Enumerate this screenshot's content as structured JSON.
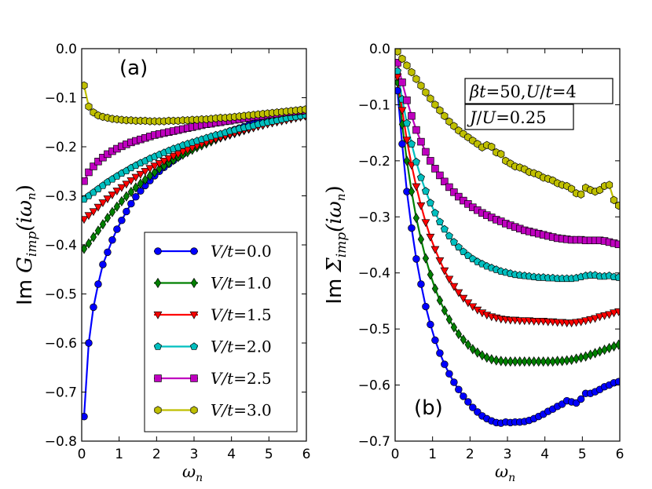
{
  "chart_data": [
    {
      "type": "line",
      "panel_label": "(a)",
      "xlabel": "ω",
      "xlabel_sub": "n",
      "ylabel_prefix": "Im",
      "ylabel_symbol": "G",
      "ylabel_sub": "imp",
      "ylabel_arg": "(iω",
      "ylabel_arg_sub": "n",
      "ylabel_close": ")",
      "xlim": [
        0,
        6
      ],
      "ylim": [
        -0.8,
        0.0
      ],
      "xticks": [
        0,
        1,
        2,
        3,
        4,
        5,
        6
      ],
      "yticks": [
        -0.8,
        -0.7,
        -0.6,
        -0.5,
        -0.4,
        -0.3,
        -0.2,
        -0.1,
        0.0
      ],
      "xtick_labels": [
        "0",
        "1",
        "2",
        "3",
        "4",
        "5",
        "6"
      ],
      "ytick_labels": [
        "−0.8",
        "−0.7",
        "−0.6",
        "−0.5",
        "−0.4",
        "−0.3",
        "−0.2",
        "−0.1",
        "0.0"
      ],
      "legend_position": "lower-right",
      "x": [
        0.063,
        0.188,
        0.314,
        0.44,
        0.565,
        0.691,
        0.817,
        0.942,
        1.068,
        1.194,
        1.319,
        1.445,
        1.571,
        1.696,
        1.822,
        1.948,
        2.073,
        2.199,
        2.325,
        2.45,
        2.576,
        2.702,
        2.827,
        2.953,
        3.079,
        3.204,
        3.33,
        3.456,
        3.581,
        3.707,
        3.833,
        3.958,
        4.084,
        4.21,
        4.335,
        4.461,
        4.587,
        4.712,
        4.838,
        4.964,
        5.089,
        5.215,
        5.341,
        5.466,
        5.592,
        5.718,
        5.843,
        5.969
      ],
      "series": [
        {
          "name": "V/t = 0.0",
          "label_main": "V/t",
          "label_value": "=0.0",
          "color": "#0000ff",
          "marker": "circle",
          "values": [
            -0.75,
            -0.6,
            -0.527,
            -0.48,
            -0.44,
            -0.415,
            -0.39,
            -0.368,
            -0.35,
            -0.332,
            -0.316,
            -0.302,
            -0.29,
            -0.279,
            -0.269,
            -0.259,
            -0.25,
            -0.242,
            -0.235,
            -0.228,
            -0.221,
            -0.215,
            -0.209,
            -0.203,
            -0.198,
            -0.193,
            -0.188,
            -0.184,
            -0.18,
            -0.176,
            -0.172,
            -0.168,
            -0.165,
            -0.162,
            -0.159,
            -0.156,
            -0.153,
            -0.15,
            -0.148,
            -0.146,
            -0.144,
            -0.142,
            -0.14,
            -0.138,
            -0.136,
            -0.135,
            -0.134,
            -0.133
          ]
        },
        {
          "name": "V/t = 1.0",
          "label_main": "V/t",
          "label_value": "=1.0",
          "color": "#008000",
          "marker": "diamond",
          "values": [
            -0.408,
            -0.397,
            -0.384,
            -0.371,
            -0.358,
            -0.345,
            -0.333,
            -0.322,
            -0.311,
            -0.301,
            -0.292,
            -0.283,
            -0.275,
            -0.267,
            -0.259,
            -0.252,
            -0.245,
            -0.239,
            -0.233,
            -0.227,
            -0.221,
            -0.216,
            -0.211,
            -0.206,
            -0.201,
            -0.197,
            -0.193,
            -0.189,
            -0.185,
            -0.181,
            -0.178,
            -0.175,
            -0.172,
            -0.169,
            -0.166,
            -0.163,
            -0.16,
            -0.157,
            -0.155,
            -0.152,
            -0.15,
            -0.148,
            -0.146,
            -0.144,
            -0.142,
            -0.14,
            -0.138,
            -0.136
          ]
        },
        {
          "name": "V/t = 1.5",
          "label_main": "V/t",
          "label_value": "=1.5",
          "color": "#ff0000",
          "marker": "triangle-down",
          "values": [
            -0.348,
            -0.34,
            -0.332,
            -0.323,
            -0.314,
            -0.306,
            -0.298,
            -0.29,
            -0.283,
            -0.276,
            -0.269,
            -0.262,
            -0.256,
            -0.25,
            -0.244,
            -0.239,
            -0.234,
            -0.229,
            -0.224,
            -0.219,
            -0.215,
            -0.21,
            -0.206,
            -0.202,
            -0.198,
            -0.194,
            -0.191,
            -0.187,
            -0.184,
            -0.181,
            -0.178,
            -0.175,
            -0.172,
            -0.169,
            -0.166,
            -0.163,
            -0.161,
            -0.158,
            -0.156,
            -0.153,
            -0.151,
            -0.149,
            -0.147,
            -0.145,
            -0.143,
            -0.141,
            -0.139,
            -0.137
          ]
        },
        {
          "name": "V/t = 2.0",
          "label_main": "V/t",
          "label_value": "=2.0",
          "color": "#00bfbf",
          "marker": "pentagon",
          "values": [
            -0.307,
            -0.3,
            -0.293,
            -0.286,
            -0.279,
            -0.272,
            -0.266,
            -0.26,
            -0.254,
            -0.249,
            -0.243,
            -0.238,
            -0.233,
            -0.229,
            -0.224,
            -0.22,
            -0.216,
            -0.212,
            -0.208,
            -0.204,
            -0.201,
            -0.197,
            -0.194,
            -0.191,
            -0.188,
            -0.185,
            -0.182,
            -0.179,
            -0.176,
            -0.174,
            -0.171,
            -0.168,
            -0.166,
            -0.163,
            -0.161,
            -0.159,
            -0.157,
            -0.154,
            -0.152,
            -0.15,
            -0.148,
            -0.146,
            -0.144,
            -0.142,
            -0.14,
            -0.139,
            -0.137,
            -0.135
          ]
        },
        {
          "name": "V/t = 2.5",
          "label_main": "V/t",
          "label_value": "=2.5",
          "color": "#bf00bf",
          "marker": "square",
          "values": [
            -0.27,
            -0.252,
            -0.24,
            -0.23,
            -0.222,
            -0.215,
            -0.209,
            -0.204,
            -0.199,
            -0.195,
            -0.191,
            -0.188,
            -0.185,
            -0.182,
            -0.179,
            -0.176,
            -0.174,
            -0.172,
            -0.17,
            -0.168,
            -0.166,
            -0.164,
            -0.162,
            -0.16,
            -0.158,
            -0.156,
            -0.154,
            -0.153,
            -0.151,
            -0.15,
            -0.148,
            -0.147,
            -0.145,
            -0.144,
            -0.142,
            -0.141,
            -0.139,
            -0.138,
            -0.137,
            -0.135,
            -0.134,
            -0.133,
            -0.131,
            -0.13,
            -0.129,
            -0.128,
            -0.127,
            -0.126
          ]
        },
        {
          "name": "V/t = 3.0",
          "label_main": "V/t",
          "label_value": "=3.0",
          "color": "#bfbf00",
          "marker": "hexagon",
          "values": [
            -0.075,
            -0.118,
            -0.13,
            -0.136,
            -0.139,
            -0.141,
            -0.143,
            -0.144,
            -0.145,
            -0.146,
            -0.146,
            -0.147,
            -0.147,
            -0.147,
            -0.148,
            -0.148,
            -0.148,
            -0.148,
            -0.147,
            -0.147,
            -0.147,
            -0.146,
            -0.146,
            -0.145,
            -0.145,
            -0.144,
            -0.144,
            -0.143,
            -0.142,
            -0.141,
            -0.141,
            -0.14,
            -0.139,
            -0.138,
            -0.137,
            -0.136,
            -0.135,
            -0.134,
            -0.133,
            -0.132,
            -0.131,
            -0.13,
            -0.129,
            -0.128,
            -0.127,
            -0.126,
            -0.125,
            -0.124
          ]
        }
      ]
    },
    {
      "type": "line",
      "panel_label": "(b)",
      "xlabel": "ω",
      "xlabel_sub": "n",
      "ylabel_prefix": "Im",
      "ylabel_symbol": "Σ",
      "ylabel_sub": "imp",
      "ylabel_arg": "(iω",
      "ylabel_arg_sub": "n",
      "ylabel_close": ")",
      "xlim": [
        0,
        6
      ],
      "ylim": [
        -0.7,
        0.0
      ],
      "xticks": [
        0,
        1,
        2,
        3,
        4,
        5,
        6
      ],
      "yticks": [
        -0.7,
        -0.6,
        -0.5,
        -0.4,
        -0.3,
        -0.2,
        -0.1,
        0.0
      ],
      "xtick_labels": [
        "0",
        "1",
        "2",
        "3",
        "4",
        "5",
        "6"
      ],
      "ytick_labels": [
        "−0.7",
        "−0.6",
        "−0.5",
        "−0.4",
        "−0.3",
        "−0.2",
        "−0.1",
        "0.0"
      ],
      "annotation_lines": [
        {
          "beta": "β",
          "t1": "t",
          "eq1": "=50,",
          "U": "U",
          "slash": "/",
          "t2": "t",
          "eq2": "=4"
        },
        {
          "J": "J",
          "slash": "/",
          "U": "U",
          "eq": "=0.25"
        }
      ],
      "x": [
        0.063,
        0.188,
        0.314,
        0.44,
        0.565,
        0.691,
        0.817,
        0.942,
        1.068,
        1.194,
        1.319,
        1.445,
        1.571,
        1.696,
        1.822,
        1.948,
        2.073,
        2.199,
        2.325,
        2.45,
        2.576,
        2.702,
        2.827,
        2.953,
        3.079,
        3.204,
        3.33,
        3.456,
        3.581,
        3.707,
        3.833,
        3.958,
        4.084,
        4.21,
        4.335,
        4.461,
        4.587,
        4.712,
        4.838,
        4.964,
        5.089,
        5.215,
        5.341,
        5.466,
        5.592,
        5.718,
        5.843,
        5.969
      ],
      "series": [
        {
          "name": "V/t = 0.0",
          "color": "#0000ff",
          "marker": "circle",
          "values": [
            -0.075,
            -0.17,
            -0.255,
            -0.32,
            -0.375,
            -0.42,
            -0.46,
            -0.492,
            -0.52,
            -0.543,
            -0.563,
            -0.58,
            -0.595,
            -0.608,
            -0.62,
            -0.63,
            -0.64,
            -0.648,
            -0.655,
            -0.66,
            -0.664,
            -0.667,
            -0.668,
            -0.666,
            -0.667,
            -0.666,
            -0.666,
            -0.665,
            -0.663,
            -0.66,
            -0.656,
            -0.652,
            -0.647,
            -0.643,
            -0.638,
            -0.634,
            -0.628,
            -0.63,
            -0.632,
            -0.625,
            -0.615,
            -0.615,
            -0.612,
            -0.608,
            -0.603,
            -0.6,
            -0.596,
            -0.594
          ]
        },
        {
          "name": "V/t = 1.0",
          "color": "#008000",
          "marker": "diamond",
          "values": [
            -0.06,
            -0.135,
            -0.2,
            -0.255,
            -0.302,
            -0.34,
            -0.374,
            -0.403,
            -0.428,
            -0.449,
            -0.467,
            -0.483,
            -0.497,
            -0.509,
            -0.519,
            -0.528,
            -0.536,
            -0.542,
            -0.547,
            -0.551,
            -0.554,
            -0.556,
            -0.557,
            -0.558,
            -0.558,
            -0.558,
            -0.558,
            -0.558,
            -0.558,
            -0.558,
            -0.558,
            -0.558,
            -0.558,
            -0.558,
            -0.557,
            -0.557,
            -0.556,
            -0.555,
            -0.553,
            -0.551,
            -0.549,
            -0.546,
            -0.543,
            -0.54,
            -0.537,
            -0.534,
            -0.531,
            -0.528
          ]
        },
        {
          "name": "V/t = 1.5",
          "color": "#ff0000",
          "marker": "triangle-down",
          "values": [
            -0.05,
            -0.11,
            -0.163,
            -0.208,
            -0.246,
            -0.28,
            -0.31,
            -0.336,
            -0.358,
            -0.378,
            -0.396,
            -0.411,
            -0.424,
            -0.435,
            -0.445,
            -0.453,
            -0.46,
            -0.466,
            -0.471,
            -0.475,
            -0.478,
            -0.48,
            -0.482,
            -0.483,
            -0.484,
            -0.484,
            -0.485,
            -0.485,
            -0.485,
            -0.486,
            -0.486,
            -0.486,
            -0.487,
            -0.487,
            -0.488,
            -0.488,
            -0.489,
            -0.489,
            -0.488,
            -0.487,
            -0.485,
            -0.483,
            -0.481,
            -0.478,
            -0.476,
            -0.474,
            -0.471,
            -0.469
          ]
        },
        {
          "name": "V/t = 2.0",
          "color": "#00bfbf",
          "marker": "pentagon",
          "values": [
            -0.04,
            -0.09,
            -0.133,
            -0.17,
            -0.202,
            -0.23,
            -0.254,
            -0.275,
            -0.293,
            -0.309,
            -0.322,
            -0.334,
            -0.345,
            -0.354,
            -0.362,
            -0.369,
            -0.375,
            -0.38,
            -0.384,
            -0.388,
            -0.391,
            -0.394,
            -0.397,
            -0.399,
            -0.401,
            -0.403,
            -0.404,
            -0.405,
            -0.406,
            -0.407,
            -0.408,
            -0.408,
            -0.409,
            -0.409,
            -0.41,
            -0.41,
            -0.41,
            -0.41,
            -0.409,
            -0.407,
            -0.405,
            -0.404,
            -0.404,
            -0.406,
            -0.406,
            -0.405,
            -0.407,
            -0.408
          ]
        },
        {
          "name": "V/t = 2.5",
          "color": "#bf00bf",
          "marker": "square",
          "values": [
            -0.025,
            -0.06,
            -0.092,
            -0.12,
            -0.145,
            -0.166,
            -0.184,
            -0.2,
            -0.214,
            -0.226,
            -0.237,
            -0.247,
            -0.256,
            -0.264,
            -0.271,
            -0.277,
            -0.283,
            -0.288,
            -0.293,
            -0.297,
            -0.301,
            -0.305,
            -0.308,
            -0.312,
            -0.315,
            -0.318,
            -0.321,
            -0.324,
            -0.326,
            -0.328,
            -0.33,
            -0.332,
            -0.334,
            -0.336,
            -0.338,
            -0.339,
            -0.34,
            -0.341,
            -0.341,
            -0.341,
            -0.342,
            -0.342,
            -0.342,
            -0.342,
            -0.343,
            -0.345,
            -0.347,
            -0.349
          ]
        },
        {
          "name": "V/t = 3.0",
          "color": "#bfbf00",
          "marker": "hexagon",
          "values": [
            -0.005,
            -0.018,
            -0.03,
            -0.042,
            -0.054,
            -0.066,
            -0.078,
            -0.089,
            -0.1,
            -0.11,
            -0.12,
            -0.13,
            -0.138,
            -0.146,
            -0.152,
            -0.158,
            -0.164,
            -0.17,
            -0.176,
            -0.172,
            -0.175,
            -0.185,
            -0.188,
            -0.2,
            -0.205,
            -0.21,
            -0.212,
            -0.215,
            -0.22,
            -0.222,
            -0.225,
            -0.23,
            -0.232,
            -0.235,
            -0.24,
            -0.243,
            -0.245,
            -0.25,
            -0.258,
            -0.26,
            -0.248,
            -0.252,
            -0.255,
            -0.252,
            -0.245,
            -0.243,
            -0.27,
            -0.28
          ]
        }
      ]
    }
  ]
}
